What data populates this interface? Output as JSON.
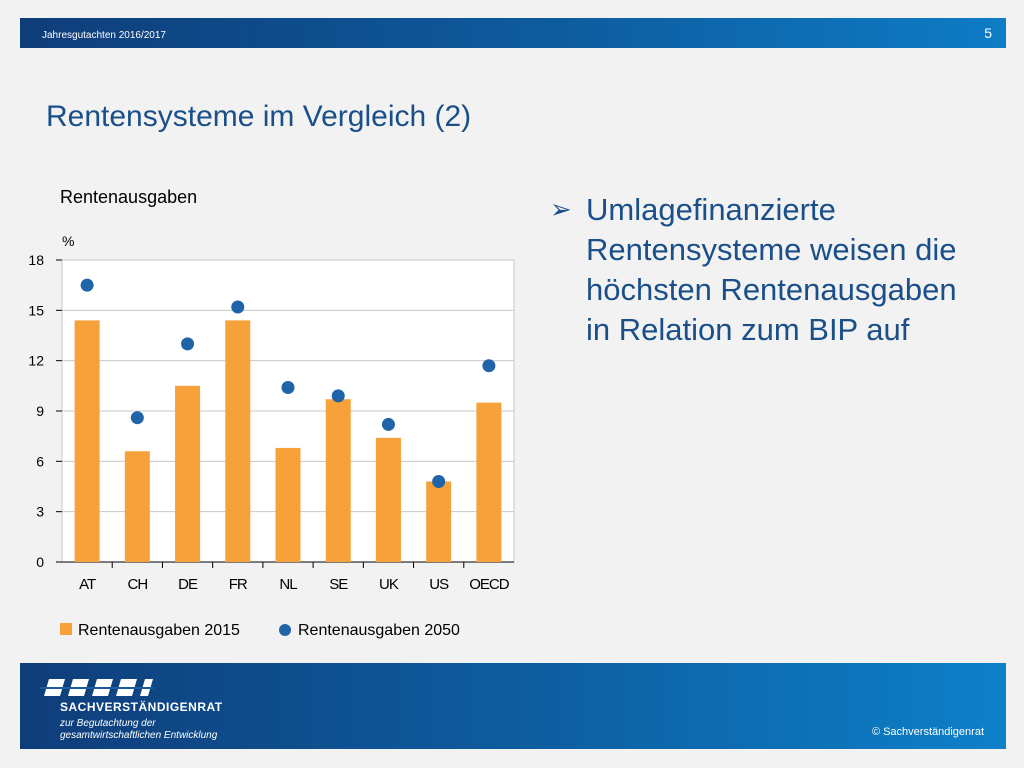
{
  "header": {
    "subtitle": "Jahresgutachten  2016/2017",
    "page_number": "5"
  },
  "slide": {
    "title": "Rentensysteme im Vergleich (2)"
  },
  "bullet": {
    "marker": "➢",
    "text": "Umlagefinanzierte Rentensysteme weisen die höchsten Rentenausgaben in Relation zum BIP auf"
  },
  "footer": {
    "org_name": "SACHVERSTÄNDIGENRAT",
    "tagline_line1": "zur Begutachtung der",
    "tagline_line2": "gesamtwirtschaftlichen Entwicklung",
    "copyright": "© Sachverständigenrat"
  },
  "chart_data": {
    "type": "bar",
    "title": "Rentenausgaben",
    "ylabel": "%",
    "xlabel": "",
    "ylim": [
      0,
      18
    ],
    "yticks": [
      0,
      3,
      6,
      9,
      12,
      15,
      18
    ],
    "grid": true,
    "legend_position": "bottom",
    "categories": [
      "AT",
      "CH",
      "DE",
      "FR",
      "NL",
      "SE",
      "UK",
      "US",
      "OECD"
    ],
    "series": [
      {
        "name": "Rentenausgaben 2015",
        "type": "bar",
        "color": "#f7a13a",
        "values": [
          14.4,
          6.6,
          10.5,
          14.4,
          6.8,
          9.7,
          7.4,
          4.8,
          9.5
        ]
      },
      {
        "name": "Rentenausgaben 2050",
        "type": "scatter",
        "color": "#1f63a8",
        "values": [
          16.5,
          8.6,
          13.0,
          15.2,
          10.4,
          9.9,
          8.2,
          4.8,
          11.7
        ]
      }
    ]
  }
}
